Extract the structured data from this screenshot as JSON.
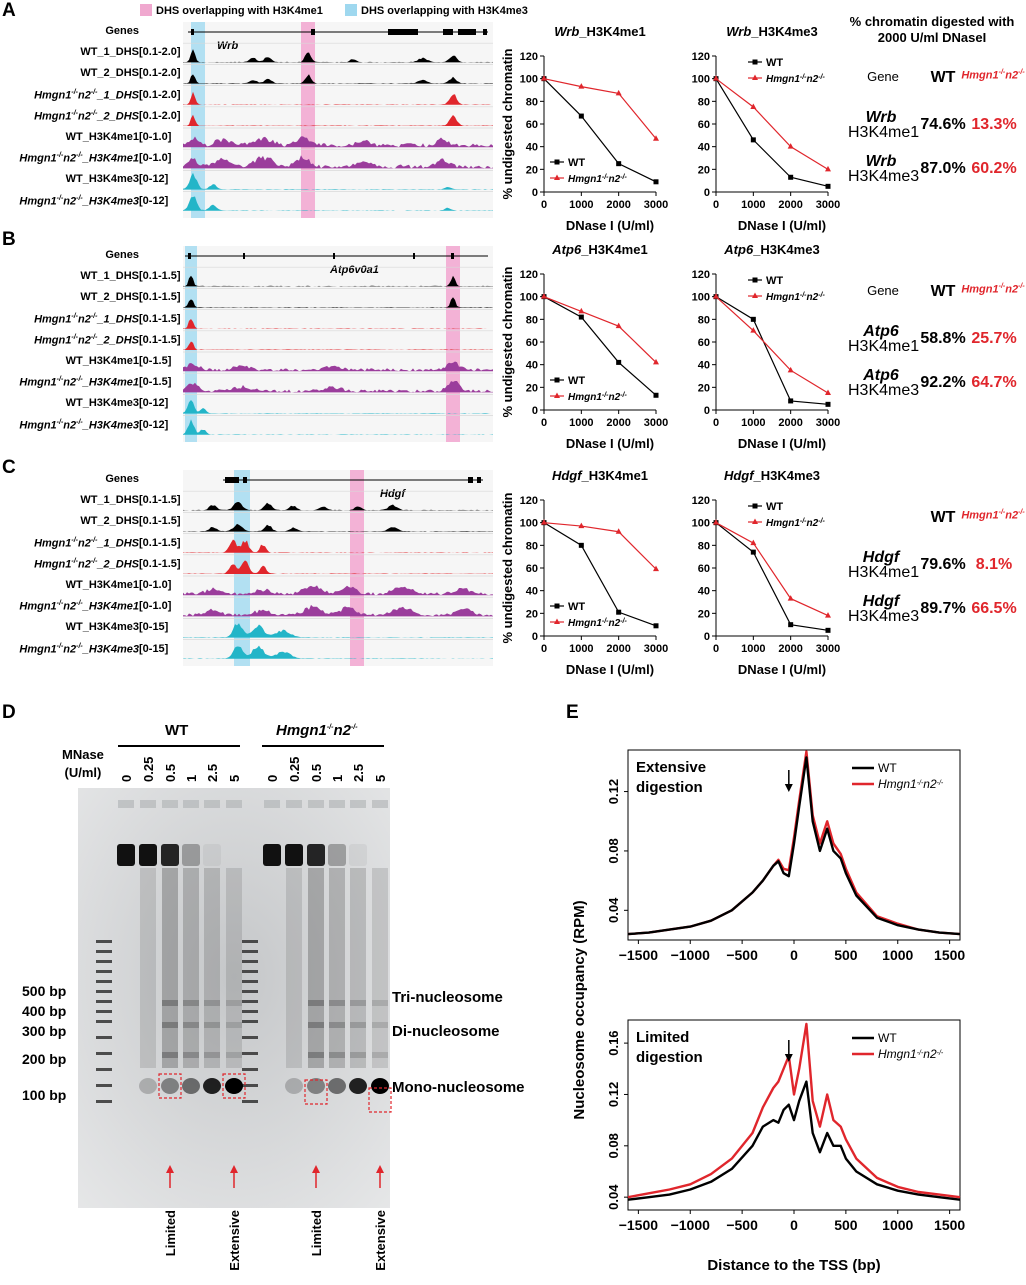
{
  "panelA": {
    "label": "A",
    "legend": {
      "pink": "DHS overlapping with H3K4me1",
      "blue": "DHS overlapping with H3K4me3"
    },
    "gene": "Wrb",
    "tracks": [
      {
        "name": "Genes",
        "range": ""
      },
      {
        "name": "WT_1_DHS",
        "range": "[0.1-2.0]"
      },
      {
        "name": "WT_2_DHS",
        "range": "[0.1-2.0]"
      },
      {
        "name": "Hmgn1-/-n2-/-_1_DHS",
        "range": "[0.1-2.0]"
      },
      {
        "name": "Hmgn1-/-n2-/-_2_DHS",
        "range": "[0.1-2.0]"
      },
      {
        "name": "WT_H3K4me1",
        "range": "[0-1.0]"
      },
      {
        "name": "Hmgn1-/-n2-/-_H3K4me1",
        "range": "[0-1.0]"
      },
      {
        "name": "WT_H3K4me3",
        "range": "[0-12]"
      },
      {
        "name": "Hmgn1-/-n2-/-_H3K4me3",
        "range": "[0-12]"
      }
    ],
    "chart1_title": "Wrb_H3K4me1",
    "chart2_title": "Wrb_H3K4me3",
    "table": {
      "header": "% chromatin digested with 2000 U/ml DNaseI",
      "col_gene": "Gene",
      "col_wt": "WT",
      "col_mut": "Hmgn1-/-n2-/-",
      "rows": [
        {
          "gene": "Wrb",
          "mark": "H3K4me1",
          "wt": "74.6%",
          "mut": "13.3%"
        },
        {
          "gene": "Wrb",
          "mark": "H3K4me3",
          "wt": "87.0%",
          "mut": "60.2%"
        }
      ]
    }
  },
  "panelB": {
    "label": "B",
    "gene": "Atp6v0a1",
    "tracks": [
      {
        "name": "Genes",
        "range": ""
      },
      {
        "name": "WT_1_DHS",
        "range": "[0.1-1.5]"
      },
      {
        "name": "WT_2_DHS",
        "range": "[0.1-1.5]"
      },
      {
        "name": "Hmgn1-/-n2-/-_1_DHS",
        "range": "[0.1-1.5]"
      },
      {
        "name": "Hmgn1-/-n2-/-_2_DHS",
        "range": "[0.1-1.5]"
      },
      {
        "name": "WT_H3K4me1",
        "range": "[0-1.5]"
      },
      {
        "name": "Hmgn1-/-n2-/-_H3K4me1",
        "range": "[0-1.5]"
      },
      {
        "name": "WT_H3K4me3",
        "range": "[0-12]"
      },
      {
        "name": "Hmgn1-/-n2-/-_H3K4me3",
        "range": "[0-12]"
      }
    ],
    "chart1_title": "Atp6_H3K4me1",
    "chart2_title": "Atp6_H3K4me3",
    "table": {
      "col_gene": "Gene",
      "col_wt": "WT",
      "col_mut": "Hmgn1-/-n2-/-",
      "rows": [
        {
          "gene": "Atp6",
          "mark": "H3K4me1",
          "wt": "58.8%",
          "mut": "25.7%"
        },
        {
          "gene": "Atp6",
          "mark": "H3K4me3",
          "wt": "92.2%",
          "mut": "64.7%"
        }
      ]
    }
  },
  "panelC": {
    "label": "C",
    "gene": "Hdgf",
    "tracks": [
      {
        "name": "Genes",
        "range": ""
      },
      {
        "name": "WT_1_DHS",
        "range": "[0.1-1.5]"
      },
      {
        "name": "WT_2_DHS",
        "range": "[0.1-1.5]"
      },
      {
        "name": "Hmgn1-/-n2-/-_1_DHS",
        "range": "[0.1-1.5]"
      },
      {
        "name": "Hmgn1-/-n2-/-_2_DHS",
        "range": "[0.1-1.5]"
      },
      {
        "name": "WT_H3K4me1",
        "range": "[0-1.0]"
      },
      {
        "name": "Hmgn1-/-n2-/-_H3K4me1",
        "range": "[0-1.0]"
      },
      {
        "name": "WT_H3K4me3",
        "range": "[0-15]"
      },
      {
        "name": "Hmgn1-/-n2-/-_H3K4me3",
        "range": "[0-15]"
      }
    ],
    "chart1_title": "Hdgf_H3K4me1",
    "chart2_title": "Hdgf_H3K4me3",
    "table": {
      "col_wt": "WT",
      "col_mut": "Hmgn1-/-n2-/-",
      "rows": [
        {
          "gene": "Hdgf",
          "mark": "H3K4me1",
          "wt": "79.6%",
          "mut": "8.1%"
        },
        {
          "gene": "Hdgf",
          "mark": "H3K4me3",
          "wt": "89.7%",
          "mut": "66.5%"
        }
      ]
    }
  },
  "panelD": {
    "label": "D",
    "group_wt": "WT",
    "group_mut": "Hmgn1-/-n2-/-",
    "mnase_label": "MNase",
    "mnase_unit": "(U/ml)",
    "doses": [
      "0",
      "0.25",
      "0.5",
      "1",
      "2.5",
      "5"
    ],
    "bp_markers": [
      "500 bp",
      "400 bp",
      "300 bp",
      "200 bp",
      "100 bp"
    ],
    "nucleosomes": [
      "Tri-nucleosome",
      "Di-nucleosome",
      "Mono-nucleosome"
    ],
    "arrow_labels": [
      "Limited",
      "Extensive",
      "Limited",
      "Extensive"
    ]
  },
  "panelE": {
    "label": "E"
  },
  "chart_data": [
    {
      "type": "line",
      "title": "Wrb_H3K4me1",
      "xlabel": "DNase I (U/ml)",
      "ylabel": "% undigested chromatin",
      "x": [
        0,
        1000,
        2000,
        3000
      ],
      "xlim": [
        0,
        3000
      ],
      "ylim": [
        0,
        120
      ],
      "xticks": [
        "0",
        "1000",
        "2000",
        "3000"
      ],
      "yticks": [
        "0",
        "20",
        "40",
        "60",
        "80",
        "100",
        "120"
      ],
      "series": [
        {
          "name": "WT",
          "values": [
            100,
            67,
            25,
            9
          ]
        },
        {
          "name": "Hmgn1-/-n2-/-",
          "values": [
            100,
            93,
            87,
            47
          ]
        }
      ],
      "legend": "bottom-left"
    },
    {
      "type": "line",
      "title": "Wrb_H3K4me3",
      "xlabel": "DNase I (U/ml)",
      "ylabel": "",
      "x": [
        0,
        1000,
        2000,
        3000
      ],
      "xlim": [
        0,
        3000
      ],
      "ylim": [
        0,
        120
      ],
      "xticks": [
        "0",
        "1000",
        "2000",
        "3000"
      ],
      "yticks": [
        "0",
        "20",
        "40",
        "60",
        "80",
        "100",
        "120"
      ],
      "series": [
        {
          "name": "WT",
          "values": [
            100,
            46,
            13,
            5
          ]
        },
        {
          "name": "Hmgn1-/-n2-/-",
          "values": [
            100,
            75,
            40,
            20
          ]
        }
      ],
      "legend": "top-right"
    },
    {
      "type": "line",
      "title": "Atp6_H3K4me1",
      "xlabel": "DNase I (U/ml)",
      "ylabel": "% undigested chromatin",
      "x": [
        0,
        1000,
        2000,
        3000
      ],
      "xlim": [
        0,
        3000
      ],
      "ylim": [
        0,
        120
      ],
      "xticks": [
        "0",
        "1000",
        "2000",
        "3000"
      ],
      "yticks": [
        "0",
        "20",
        "40",
        "60",
        "80",
        "100",
        "120"
      ],
      "series": [
        {
          "name": "WT",
          "values": [
            100,
            82,
            42,
            13
          ]
        },
        {
          "name": "Hmgn1-/-n2-/-",
          "values": [
            100,
            87,
            74,
            42
          ]
        }
      ],
      "legend": "bottom-left"
    },
    {
      "type": "line",
      "title": "Atp6_H3K4me3",
      "xlabel": "DNase I (U/ml)",
      "ylabel": "",
      "x": [
        0,
        1000,
        2000,
        3000
      ],
      "xlim": [
        0,
        3000
      ],
      "ylim": [
        0,
        120
      ],
      "xticks": [
        "0",
        "1000",
        "2000",
        "3000"
      ],
      "yticks": [
        "0",
        "20",
        "40",
        "60",
        "80",
        "100",
        "120"
      ],
      "series": [
        {
          "name": "WT",
          "values": [
            100,
            80,
            8,
            5
          ]
        },
        {
          "name": "Hmgn1-/-n2-/-",
          "values": [
            100,
            70,
            35,
            15
          ]
        }
      ],
      "legend": "top-right"
    },
    {
      "type": "line",
      "title": "Hdgf_H3K4me1",
      "xlabel": "DNase I (U/ml)",
      "ylabel": "% undigested chromatin",
      "x": [
        0,
        1000,
        2000,
        3000
      ],
      "xlim": [
        0,
        3000
      ],
      "ylim": [
        0,
        120
      ],
      "xticks": [
        "0",
        "1000",
        "2000",
        "3000"
      ],
      "yticks": [
        "0",
        "20",
        "40",
        "60",
        "80",
        "100",
        "120"
      ],
      "series": [
        {
          "name": "WT",
          "values": [
            100,
            80,
            21,
            9
          ]
        },
        {
          "name": "Hmgn1-/-n2-/-",
          "values": [
            100,
            97,
            92,
            59
          ]
        }
      ],
      "legend": "bottom-left"
    },
    {
      "type": "line",
      "title": "Hdgf_H3K4me3",
      "xlabel": "DNase I (U/ml)",
      "ylabel": "",
      "x": [
        0,
        1000,
        2000,
        3000
      ],
      "xlim": [
        0,
        3000
      ],
      "ylim": [
        0,
        120
      ],
      "xticks": [
        "0",
        "1000",
        "2000",
        "3000"
      ],
      "yticks": [
        "0",
        "20",
        "40",
        "60",
        "80",
        "100",
        "120"
      ],
      "series": [
        {
          "name": "WT",
          "values": [
            100,
            74,
            10,
            5
          ]
        },
        {
          "name": "Hmgn1-/-n2-/-",
          "values": [
            100,
            82,
            33,
            18
          ]
        }
      ],
      "legend": "top-right"
    },
    {
      "type": "line",
      "title": "Extensive digestion",
      "xlabel": "",
      "ylabel": "Nucleosome occupancy (RPM)",
      "xlim": [
        -1600,
        1600
      ],
      "ylim": [
        0.02,
        0.148
      ],
      "xticks": [
        "-1500",
        "-1000",
        "-500",
        "0",
        "500",
        "1000",
        "1500"
      ],
      "yticks": [
        "0.04",
        "0.08",
        "0.12"
      ],
      "x": [
        -1600,
        -1400,
        -1200,
        -1000,
        -800,
        -600,
        -400,
        -300,
        -200,
        -150,
        -100,
        -50,
        0,
        50,
        120,
        180,
        250,
        320,
        380,
        450,
        500,
        600,
        800,
        1000,
        1200,
        1400,
        1600
      ],
      "series": [
        {
          "name": "WT",
          "values": [
            0.024,
            0.025,
            0.027,
            0.029,
            0.033,
            0.04,
            0.052,
            0.06,
            0.07,
            0.073,
            0.065,
            0.063,
            0.085,
            0.11,
            0.143,
            0.1,
            0.08,
            0.095,
            0.08,
            0.075,
            0.065,
            0.05,
            0.035,
            0.03,
            0.027,
            0.025,
            0.024
          ]
        },
        {
          "name": "Hmgn1-/-n2-/-",
          "values": [
            0.024,
            0.025,
            0.027,
            0.029,
            0.033,
            0.04,
            0.052,
            0.06,
            0.07,
            0.074,
            0.068,
            0.067,
            0.089,
            0.114,
            0.147,
            0.104,
            0.085,
            0.1,
            0.085,
            0.078,
            0.068,
            0.052,
            0.036,
            0.031,
            0.027,
            0.025,
            0.024
          ]
        }
      ],
      "legend": "top-right"
    },
    {
      "type": "line",
      "title": "Limited digestion",
      "xlabel": "Distance to the TSS (bp)",
      "ylabel": "Nucleosome occupancy (RPM)",
      "xlim": [
        -1600,
        1600
      ],
      "ylim": [
        0.03,
        0.178
      ],
      "xticks": [
        "-1500",
        "-1000",
        "-500",
        "0",
        "500",
        "1000",
        "1500"
      ],
      "yticks": [
        "0.04",
        "0.08",
        "0.12",
        "0.16"
      ],
      "x": [
        -1600,
        -1400,
        -1200,
        -1000,
        -800,
        -600,
        -400,
        -300,
        -200,
        -150,
        -100,
        -50,
        0,
        50,
        120,
        180,
        250,
        320,
        380,
        450,
        500,
        600,
        800,
        1000,
        1200,
        1400,
        1600
      ],
      "series": [
        {
          "name": "WT",
          "values": [
            0.038,
            0.04,
            0.042,
            0.046,
            0.052,
            0.062,
            0.08,
            0.095,
            0.1,
            0.098,
            0.108,
            0.112,
            0.1,
            0.115,
            0.13,
            0.09,
            0.075,
            0.09,
            0.08,
            0.08,
            0.07,
            0.06,
            0.05,
            0.045,
            0.042,
            0.04,
            0.038
          ]
        },
        {
          "name": "Hmgn1-/-n2-/-",
          "values": [
            0.04,
            0.043,
            0.046,
            0.05,
            0.058,
            0.07,
            0.09,
            0.11,
            0.125,
            0.13,
            0.14,
            0.15,
            0.12,
            0.14,
            0.175,
            0.115,
            0.095,
            0.12,
            0.1,
            0.095,
            0.085,
            0.07,
            0.055,
            0.048,
            0.044,
            0.042,
            0.04
          ]
        }
      ],
      "legend": "top-right"
    }
  ]
}
